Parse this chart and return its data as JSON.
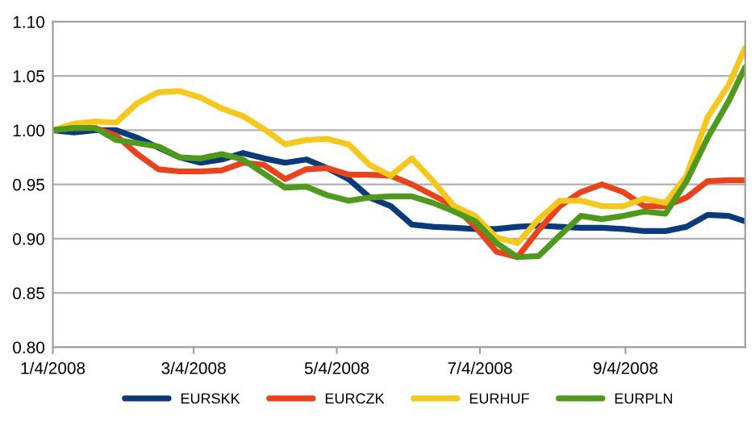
{
  "chart_data": {
    "type": "line",
    "x": [
      "2008-01-04",
      "2008-01-13",
      "2008-01-22",
      "2008-01-31",
      "2008-02-09",
      "2008-02-18",
      "2008-02-27",
      "2008-03-07",
      "2008-03-16",
      "2008-03-25",
      "2008-04-03",
      "2008-04-12",
      "2008-04-21",
      "2008-04-30",
      "2008-05-09",
      "2008-05-18",
      "2008-05-27",
      "2008-06-05",
      "2008-06-14",
      "2008-06-23",
      "2008-07-02",
      "2008-07-11",
      "2008-07-20",
      "2008-07-29",
      "2008-08-07",
      "2008-08-16",
      "2008-08-25",
      "2008-09-03",
      "2008-09-12",
      "2008-09-21",
      "2008-09-30",
      "2008-10-09",
      "2008-10-18",
      "2008-10-25"
    ],
    "series": [
      {
        "name": "EURSKK",
        "color": "#0b3a7a",
        "values": [
          1.0,
          0.998,
          1.0,
          1.0,
          0.993,
          0.984,
          0.975,
          0.97,
          0.973,
          0.979,
          0.974,
          0.97,
          0.973,
          0.965,
          0.955,
          0.938,
          0.93,
          0.913,
          0.911,
          0.91,
          0.909,
          0.909,
          0.911,
          0.912,
          0.911,
          0.91,
          0.91,
          0.909,
          0.907,
          0.907,
          0.911,
          0.922,
          0.921,
          0.916
        ]
      },
      {
        "name": "EURCZK",
        "color": "#e8431c",
        "values": [
          1.0,
          1.002,
          1.002,
          0.995,
          0.978,
          0.964,
          0.962,
          0.962,
          0.963,
          0.97,
          0.968,
          0.955,
          0.964,
          0.965,
          0.959,
          0.959,
          0.958,
          0.95,
          0.94,
          0.93,
          0.911,
          0.888,
          0.883,
          0.908,
          0.93,
          0.943,
          0.95,
          0.943,
          0.93,
          0.93,
          0.938,
          0.953,
          0.954,
          0.954
        ]
      },
      {
        "name": "EURHUF",
        "color": "#f6c71c",
        "values": [
          1.0,
          1.006,
          1.008,
          1.007,
          1.025,
          1.035,
          1.036,
          1.03,
          1.02,
          1.013,
          1.001,
          0.987,
          0.991,
          0.992,
          0.987,
          0.968,
          0.958,
          0.974,
          0.953,
          0.93,
          0.921,
          0.901,
          0.896,
          0.918,
          0.935,
          0.935,
          0.93,
          0.93,
          0.937,
          0.933,
          0.958,
          1.012,
          1.042,
          1.076
        ]
      },
      {
        "name": "EURPLN",
        "color": "#4f9a1c",
        "values": [
          1.0,
          1.002,
          1.002,
          0.991,
          0.988,
          0.985,
          0.975,
          0.974,
          0.978,
          0.973,
          0.96,
          0.947,
          0.948,
          0.94,
          0.935,
          0.938,
          0.939,
          0.939,
          0.933,
          0.925,
          0.916,
          0.896,
          0.883,
          0.884,
          0.903,
          0.921,
          0.918,
          0.921,
          0.925,
          0.923,
          0.953,
          0.993,
          1.027,
          1.058
        ]
      }
    ],
    "xlim": [
      "2008-01-04",
      "2008-10-25"
    ],
    "xticks": [
      {
        "value": "2008-01-04",
        "label": "1/4/2008"
      },
      {
        "value": "2008-03-04",
        "label": "3/4/2008"
      },
      {
        "value": "2008-05-04",
        "label": "5/4/2008"
      },
      {
        "value": "2008-07-04",
        "label": "7/4/2008"
      },
      {
        "value": "2008-09-04",
        "label": "9/4/2008"
      }
    ],
    "ylim": [
      0.8,
      1.1
    ],
    "yticks": [
      {
        "value": 0.8,
        "label": "0.80"
      },
      {
        "value": 0.85,
        "label": "0.85"
      },
      {
        "value": 0.9,
        "label": "0.90"
      },
      {
        "value": 0.95,
        "label": "0.95"
      },
      {
        "value": 1.0,
        "label": "1.00"
      },
      {
        "value": 1.05,
        "label": "1.05"
      },
      {
        "value": 1.1,
        "label": "1.10"
      }
    ],
    "grid": "y",
    "legend": "bottom",
    "marker": "none",
    "line_style": "solid"
  }
}
